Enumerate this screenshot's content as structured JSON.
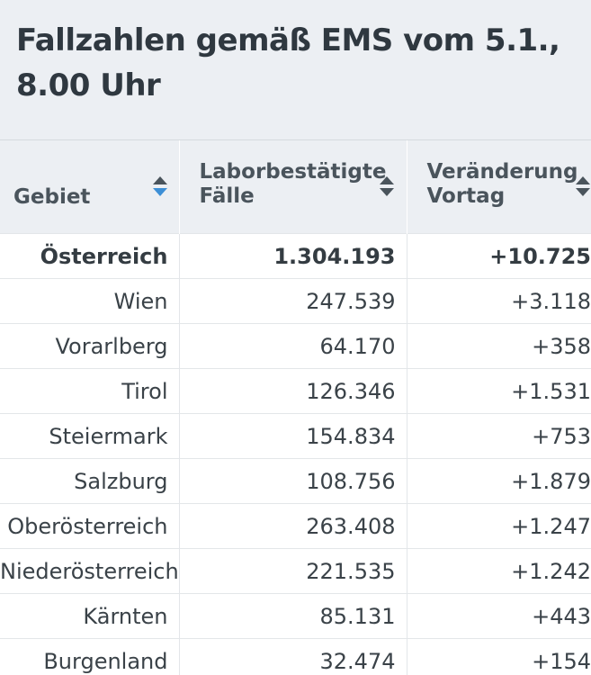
{
  "title": "Fallzahlen gemäß EMS vom 5.1., 8.00 Uhr",
  "colors": {
    "header_bg": "#eceff3",
    "text": "#3a4248",
    "sort_active": "#3d8fd6",
    "sort_inactive": "#4a545c"
  },
  "table": {
    "columns": [
      {
        "label": "Gebiet",
        "sort_icon": "sort-icon",
        "sort_state": "ascending"
      },
      {
        "label": "Laborbestätigte\nFälle",
        "sort_icon": "sort-icon",
        "sort_state": "none"
      },
      {
        "label": "Veränderung\nVortag",
        "sort_icon": "sort-icon",
        "sort_state": "none"
      }
    ],
    "rows": [
      {
        "region": "Österreich",
        "cases": "1.304.193",
        "change": "+10.725"
      },
      {
        "region": "Wien",
        "cases": "247.539",
        "change": "+3.118"
      },
      {
        "region": "Vorarlberg",
        "cases": "64.170",
        "change": "+358"
      },
      {
        "region": "Tirol",
        "cases": "126.346",
        "change": "+1.531"
      },
      {
        "region": "Steiermark",
        "cases": "154.834",
        "change": "+753"
      },
      {
        "region": "Salzburg",
        "cases": "108.756",
        "change": "+1.879"
      },
      {
        "region": "Oberösterreich",
        "cases": "263.408",
        "change": "+1.247"
      },
      {
        "region": "Niederösterreich",
        "cases": "221.535",
        "change": "+1.242"
      },
      {
        "region": "Kärnten",
        "cases": "85.131",
        "change": "+443"
      },
      {
        "region": "Burgenland",
        "cases": "32.474",
        "change": "+154"
      }
    ]
  }
}
